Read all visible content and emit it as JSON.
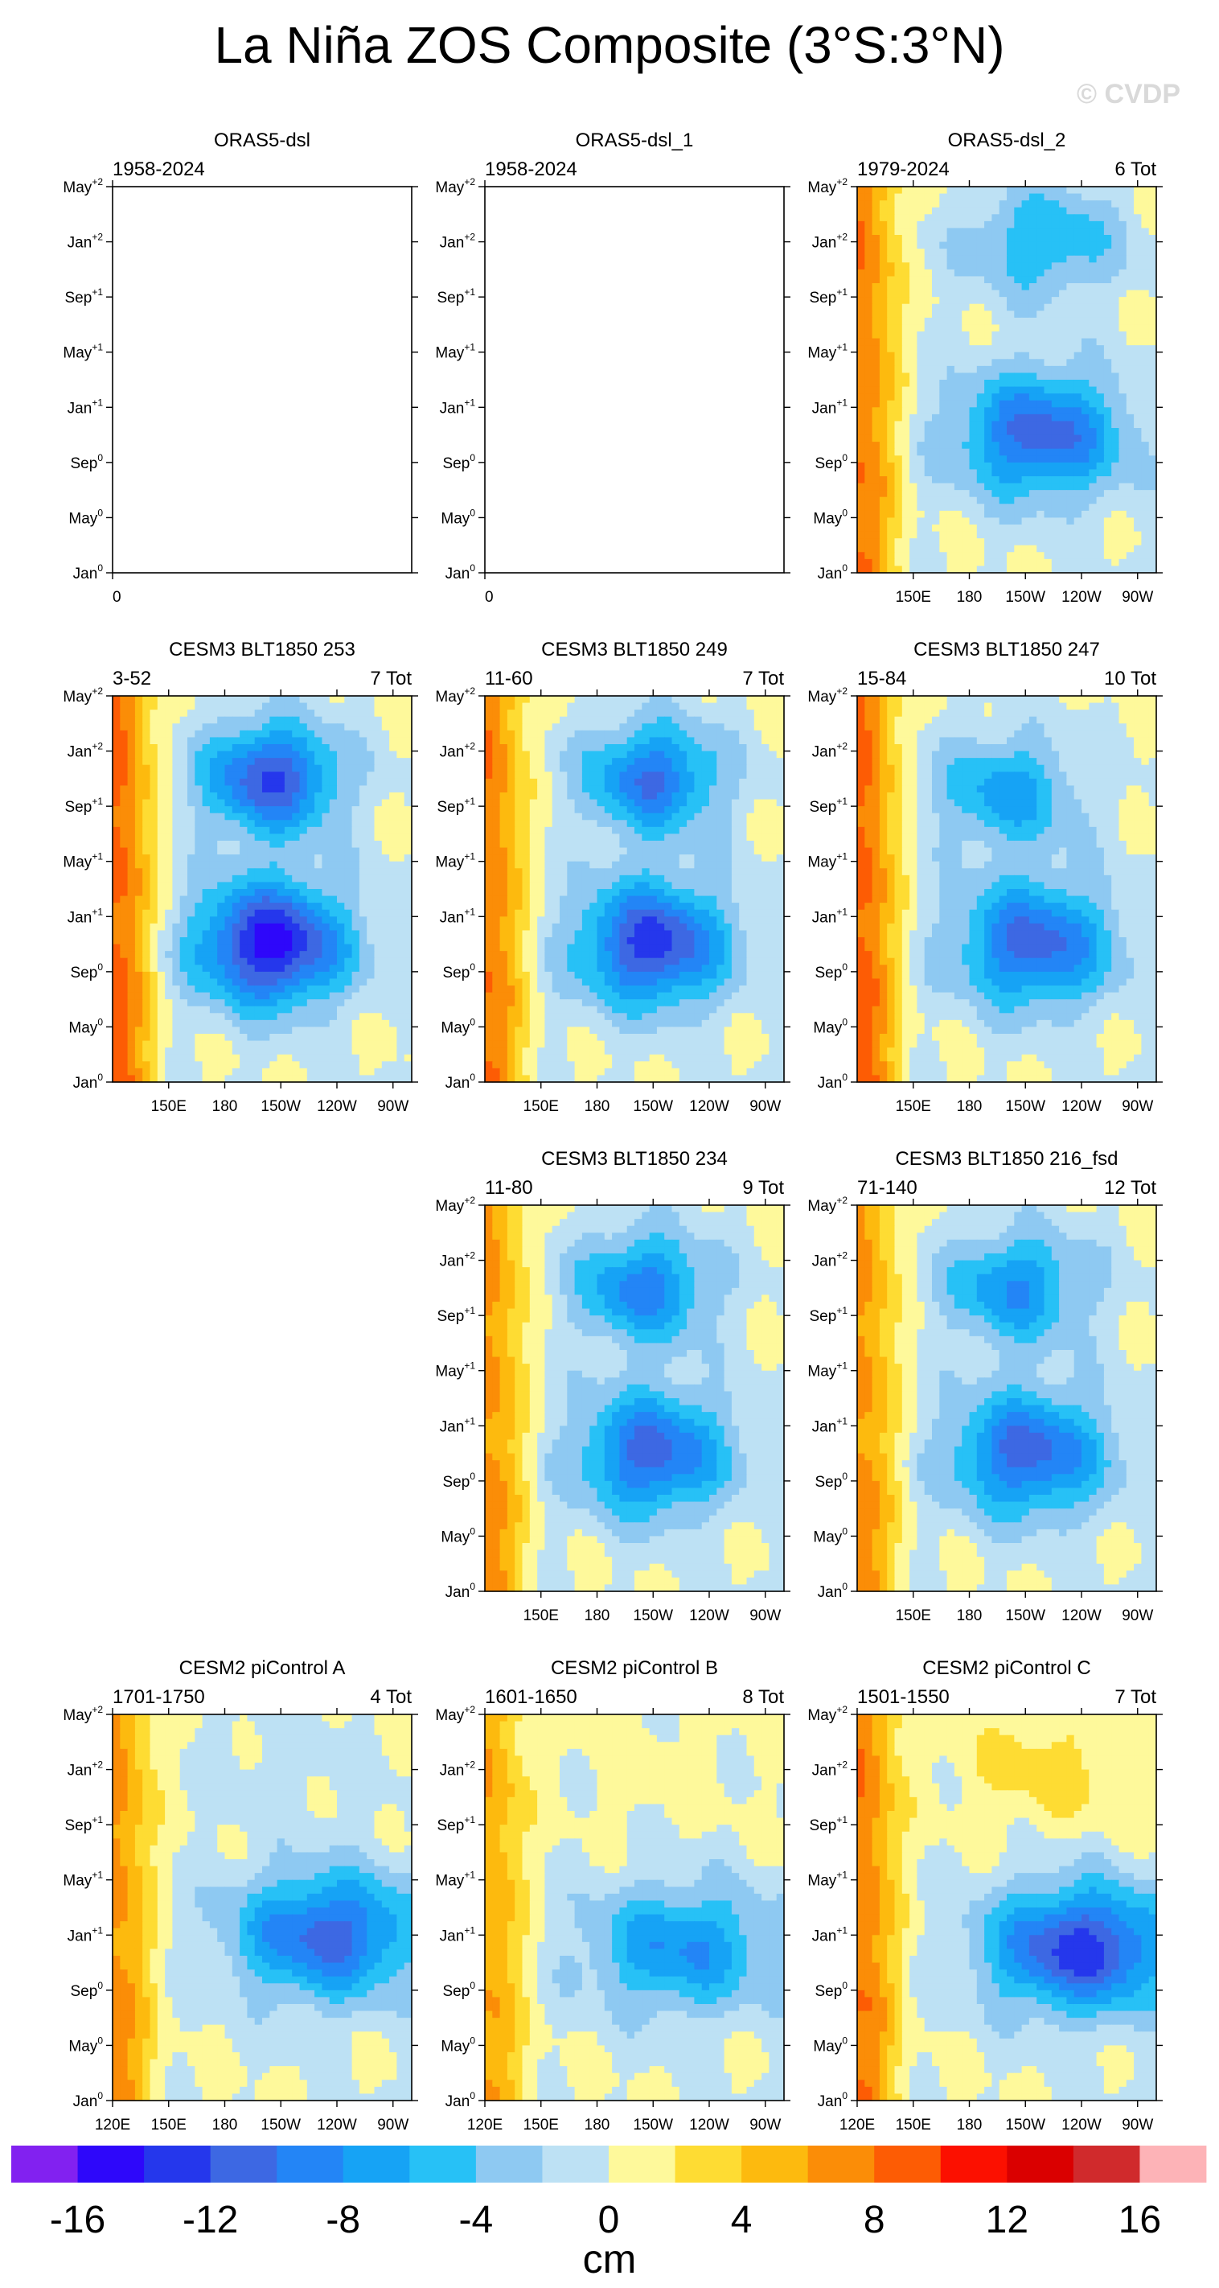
{
  "title": "La Niña ZOS Composite (3°S:3°N)",
  "watermark": "© CVDP",
  "ytick_labels": [
    {
      "base": "Jan",
      "sup": "0"
    },
    {
      "base": "May",
      "sup": "0"
    },
    {
      "base": "Sep",
      "sup": "0"
    },
    {
      "base": "Jan",
      "sup": "+1"
    },
    {
      "base": "May",
      "sup": "+1"
    },
    {
      "base": "Sep",
      "sup": "+1"
    },
    {
      "base": "Jan",
      "sup": "+2"
    },
    {
      "base": "May",
      "sup": "+2"
    }
  ],
  "chart_data": {
    "type": "heatmap",
    "title": "La Niña ZOS Composite (3°S:3°N)",
    "x_axis": {
      "description": "longitude",
      "range_deg_east": [
        120,
        280
      ]
    },
    "y_axis": {
      "description": "month relative to event",
      "range_months": [
        0,
        28
      ]
    },
    "colorbar": {
      "unit": "cm",
      "levels": [
        -16,
        -14,
        -12,
        -10,
        -8,
        -6,
        -4,
        -2,
        0,
        2,
        4,
        6,
        8,
        10,
        12,
        14,
        16
      ],
      "colors": [
        "#8221f0",
        "#2e07fa",
        "#2537ec",
        "#3d68e3",
        "#2385f6",
        "#16a3f5",
        "#27c1f6",
        "#8ec9f2",
        "#bde1f4",
        "#fef99b",
        "#fedc33",
        "#fdba0e",
        "#fb8d07",
        "#fd5c04",
        "#fc1000",
        "#da0000",
        "#d02a2c",
        "#fdb3b7"
      ],
      "tick_labels": [
        "-16",
        "-12",
        "-8",
        "-4",
        "0",
        "4",
        "8",
        "12",
        "16"
      ]
    },
    "panels": [
      {
        "name": "ORAS5-dsl",
        "years": "1958-2024",
        "count": "",
        "data": false,
        "xtick_labels": [
          "0"
        ],
        "pattern": null
      },
      {
        "name": "ORAS5-dsl_1",
        "years": "1958-2024",
        "count": "",
        "data": false,
        "xtick_labels": [
          "0"
        ],
        "pattern": null
      },
      {
        "name": "ORAS5-dsl_2",
        "years": "1979-2024",
        "count": "6 Tot",
        "data": true,
        "xtick_labels": [
          "150E",
          "180",
          "150W",
          "120W",
          "90W"
        ],
        "pattern": {
          "west_warm_cm": 8,
          "peak1_lon": 218,
          "peak1_month": 10,
          "peak1_cm": -11,
          "peak2_lon": 220,
          "peak2_month": 24,
          "peak2_cm": -6,
          "width_deg": 45
        }
      },
      {
        "name": "CESM3 BLT1850 253",
        "years": "3-52",
        "count": "7 Tot",
        "data": true,
        "xtick_labels": [
          "150E",
          "180",
          "150W",
          "120W",
          "90W"
        ],
        "pattern": {
          "west_warm_cm": 9,
          "peak1_lon": 205,
          "peak1_month": 10,
          "peak1_cm": -15,
          "peak2_lon": 205,
          "peak2_month": 22,
          "peak2_cm": -12,
          "width_deg": 40
        }
      },
      {
        "name": "CESM3 BLT1850 249",
        "years": "11-60",
        "count": "7 Tot",
        "data": true,
        "xtick_labels": [
          "150E",
          "180",
          "150W",
          "120W",
          "90W"
        ],
        "pattern": {
          "west_warm_cm": 8,
          "peak1_lon": 210,
          "peak1_month": 10,
          "peak1_cm": -13,
          "peak2_lon": 210,
          "peak2_month": 22,
          "peak2_cm": -10,
          "width_deg": 40
        }
      },
      {
        "name": "CESM3 BLT1850 247",
        "years": "15-84",
        "count": "10 Tot",
        "data": true,
        "xtick_labels": [
          "150E",
          "180",
          "150W",
          "120W",
          "90W"
        ],
        "pattern": {
          "west_warm_cm": 9,
          "peak1_lon": 215,
          "peak1_month": 10,
          "peak1_cm": -11,
          "peak2_lon": 200,
          "peak2_month": 21,
          "peak2_cm": -7,
          "width_deg": 42
        }
      },
      {
        "name": "CESM3 BLT1850 234",
        "years": "11-80",
        "count": "9 Tot",
        "data": true,
        "xtick_labels": [
          "150E",
          "180",
          "150W",
          "120W",
          "90W"
        ],
        "pattern": {
          "west_warm_cm": 7,
          "peak1_lon": 210,
          "peak1_month": 10,
          "peak1_cm": -11,
          "peak2_lon": 205,
          "peak2_month": 22,
          "peak2_cm": -9,
          "width_deg": 40
        }
      },
      {
        "name": "CESM3 BLT1850 216_fsd",
        "years": "71-140",
        "count": "12 Tot",
        "data": true,
        "xtick_labels": [
          "150E",
          "180",
          "150W",
          "120W",
          "90W"
        ],
        "pattern": {
          "west_warm_cm": 7,
          "peak1_lon": 212,
          "peak1_month": 10,
          "peak1_cm": -11,
          "peak2_lon": 205,
          "peak2_month": 22,
          "peak2_cm": -8,
          "width_deg": 42
        }
      },
      {
        "name": "CESM2 piControl A",
        "years": "1701-1750",
        "count": "4 Tot",
        "data": true,
        "xtick_labels": [
          "120E",
          "150E",
          "180",
          "150W",
          "120W",
          "90W"
        ],
        "pattern": {
          "west_warm_cm": 7,
          "peak1_lon": 235,
          "peak1_month": 12,
          "peak1_cm": -11,
          "peak2_lon": 210,
          "peak2_month": 24,
          "peak2_cm": -1,
          "width_deg": 50
        }
      },
      {
        "name": "CESM2 piControl B",
        "years": "1601-1650",
        "count": "8 Tot",
        "data": true,
        "xtick_labels": [
          "120E",
          "150E",
          "180",
          "150W",
          "120W",
          "90W"
        ],
        "pattern": {
          "west_warm_cm": 6,
          "peak1_lon": 225,
          "peak1_month": 11,
          "peak1_cm": -8,
          "peak2_lon": 210,
          "peak2_month": 24,
          "peak2_cm": 1,
          "width_deg": 50
        }
      },
      {
        "name": "CESM2 piControl C",
        "years": "1501-1550",
        "count": "7 Tot",
        "data": true,
        "xtick_labels": [
          "120E",
          "150E",
          "180",
          "150W",
          "120W",
          "90W"
        ],
        "pattern": {
          "west_warm_cm": 8,
          "peak1_lon": 240,
          "peak1_month": 11,
          "peak1_cm": -13,
          "peak2_lon": 220,
          "peak2_month": 24,
          "peak2_cm": 3,
          "width_deg": 50
        }
      }
    ]
  }
}
